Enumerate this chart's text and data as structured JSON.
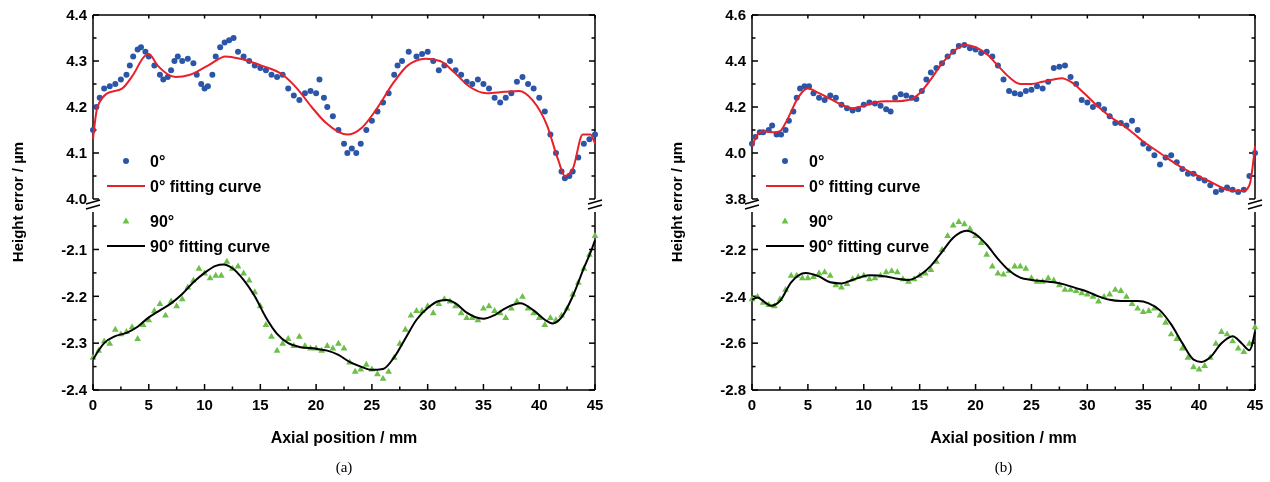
{
  "chart_data": [
    {
      "type": "scatter",
      "ylabel": "Height error / µm",
      "xlim": [
        0,
        45
      ],
      "xticks": [
        {
          "value": 0,
          "label": null
        },
        {
          "value": 5,
          "label": null
        },
        {
          "value": 10,
          "label": null
        },
        {
          "value": 15,
          "label": null
        },
        {
          "value": 20,
          "label": null
        },
        {
          "value": 25,
          "label": null
        },
        {
          "value": 30,
          "label": null
        },
        {
          "value": 35,
          "label": null
        },
        {
          "value": 40,
          "label": null
        },
        {
          "value": 45,
          "label": null
        }
      ],
      "ylim": [
        4.0,
        4.4
      ],
      "yticks": [
        {
          "value": 4.0,
          "label": "4.0"
        },
        {
          "value": 4.05,
          "label": null
        },
        4.1,
        {
          "value": 4.15,
          "label": null
        },
        4.2,
        {
          "value": 4.25,
          "label": null
        },
        4.3,
        {
          "value": 4.35,
          "label": null
        },
        4.4
      ],
      "tick_labels": "y",
      "legend": "bottom left",
      "series": [
        {
          "name": "0°",
          "type": "scatter",
          "marker": "circle",
          "color": "#2b56a8",
          "x": [
            0,
            0.3,
            0.6,
            1,
            1.5,
            2,
            2.5,
            3,
            3.3,
            3.6,
            4,
            4.3,
            4.7,
            5,
            5.5,
            6,
            6.3,
            6.7,
            7,
            7.3,
            7.6,
            8,
            8.5,
            9,
            9.3,
            9.7,
            10,
            10.3,
            10.7,
            11,
            11.4,
            11.8,
            12.2,
            12.6,
            13,
            13.5,
            14,
            14.5,
            15,
            15.5,
            16,
            16.5,
            17,
            17.5,
            18,
            18.5,
            19,
            19.5,
            20,
            20.3,
            20.7,
            21,
            21.5,
            22,
            22.5,
            22.8,
            23.2,
            23.6,
            24,
            24.5,
            25,
            25.5,
            26,
            26.5,
            27,
            27.3,
            27.7,
            28.3,
            29,
            29.5,
            30,
            30.5,
            31,
            31.5,
            32,
            32.5,
            33,
            33.5,
            34,
            34.5,
            35,
            35.5,
            36,
            36.5,
            37,
            37.5,
            38,
            38.5,
            39,
            39.5,
            40,
            40.5,
            41,
            41.5,
            42,
            42.3,
            42.7,
            43,
            43.5,
            44,
            44.5,
            45
          ],
          "values": [
            4.15,
            4.2,
            4.22,
            4.24,
            4.245,
            4.25,
            4.26,
            4.27,
            4.29,
            4.31,
            4.325,
            4.33,
            4.32,
            4.31,
            4.29,
            4.27,
            4.26,
            4.265,
            4.28,
            4.3,
            4.31,
            4.3,
            4.305,
            4.295,
            4.27,
            4.25,
            4.24,
            4.245,
            4.27,
            4.31,
            4.33,
            4.34,
            4.345,
            4.35,
            4.32,
            4.31,
            4.3,
            4.29,
            4.285,
            4.28,
            4.27,
            4.265,
            4.27,
            4.24,
            4.225,
            4.215,
            4.23,
            4.235,
            4.23,
            4.26,
            4.22,
            4.2,
            4.18,
            4.15,
            4.12,
            4.1,
            4.11,
            4.1,
            4.12,
            4.15,
            4.17,
            4.19,
            4.21,
            4.23,
            4.27,
            4.29,
            4.3,
            4.32,
            4.31,
            4.315,
            4.32,
            4.3,
            4.28,
            4.29,
            4.3,
            4.28,
            4.27,
            4.255,
            4.25,
            4.26,
            4.25,
            4.24,
            4.22,
            4.21,
            4.22,
            4.23,
            4.255,
            4.265,
            4.25,
            4.24,
            4.22,
            4.19,
            4.14,
            4.1,
            4.06,
            4.045,
            4.05,
            4.06,
            4.09,
            4.12,
            4.13,
            4.14
          ]
        },
        {
          "name": "0° fitting curve",
          "type": "line",
          "color": "#e8202a",
          "x": [
            0,
            0.4,
            1.3,
            2.6,
            3.6,
            4.6,
            5,
            5.8,
            7.4,
            8.7,
            10.3,
            11.9,
            13.2,
            15.1,
            17,
            18.3,
            19.6,
            20.9,
            22.8,
            24.1,
            25.4,
            27,
            28.2,
            29.8,
            31.1,
            32.4,
            33.7,
            35.3,
            36.9,
            38.2,
            39.4,
            40.7,
            41.7,
            42.3,
            43,
            43.9,
            44.6,
            45
          ],
          "values": [
            4.13,
            4.2,
            4.23,
            4.24,
            4.27,
            4.31,
            4.315,
            4.29,
            4.265,
            4.27,
            4.29,
            4.31,
            4.305,
            4.29,
            4.27,
            4.24,
            4.2,
            4.165,
            4.14,
            4.155,
            4.195,
            4.255,
            4.29,
            4.305,
            4.3,
            4.275,
            4.245,
            4.23,
            4.233,
            4.235,
            4.215,
            4.16,
            4.085,
            4.05,
            4.065,
            4.14,
            4.14,
            4.12
          ]
        }
      ]
    },
    {
      "type": "scatter",
      "xlabel": "Axial position / mm",
      "annotations": [
        "(a)"
      ],
      "xlim": [
        0,
        45
      ],
      "xticks": [
        0,
        {
          "value": 2.5,
          "label": null
        },
        5,
        {
          "value": 7.5,
          "label": null
        },
        10,
        {
          "value": 12.5,
          "label": null
        },
        15,
        {
          "value": 17.5,
          "label": null
        },
        20,
        {
          "value": 22.5,
          "label": null
        },
        25,
        {
          "value": 27.5,
          "label": null
        },
        30,
        {
          "value": 32.5,
          "label": null
        },
        35,
        {
          "value": 37.5,
          "label": null
        },
        40,
        {
          "value": 42.5,
          "label": null
        },
        45
      ],
      "ylim": [
        -2.4,
        -2.02
      ],
      "yticks": [
        -2.4,
        {
          "value": -2.35,
          "label": null
        },
        -2.3,
        {
          "value": -2.25,
          "label": null
        },
        -2.2,
        {
          "value": -2.15,
          "label": null
        },
        -2.1,
        {
          "value": -2.05,
          "label": null
        }
      ],
      "legend": "top left",
      "series": [
        {
          "name": "90°",
          "type": "scatter",
          "marker": "triangle",
          "color": "#6cc04a",
          "x": [
            0,
            0.5,
            1,
            1.5,
            2,
            2.5,
            3,
            3.5,
            4,
            4.5,
            5,
            5.5,
            6,
            6.5,
            7,
            7.5,
            8,
            8.5,
            9,
            9.5,
            10,
            10.5,
            11,
            11.5,
            12,
            12.5,
            13,
            13.5,
            14,
            14.5,
            15,
            15.5,
            16,
            16.5,
            17,
            17.5,
            18,
            18.5,
            19,
            19.5,
            20,
            20.5,
            21,
            21.5,
            22,
            22.5,
            23,
            23.5,
            24,
            24.5,
            25,
            25.5,
            26,
            26.5,
            27,
            27.5,
            28,
            28.5,
            29,
            29.5,
            30,
            30.5,
            31,
            31.5,
            32,
            32.5,
            33,
            33.5,
            34,
            34.5,
            35,
            35.5,
            36,
            36.5,
            37,
            37.5,
            38,
            38.5,
            39,
            39.5,
            40,
            40.5,
            41,
            41.5,
            42,
            42.5,
            43,
            43.5,
            44,
            44.5,
            45
          ],
          "values": [
            -2.33,
            -2.315,
            -2.295,
            -2.3,
            -2.27,
            -2.28,
            -2.275,
            -2.265,
            -2.29,
            -2.26,
            -2.25,
            -2.23,
            -2.215,
            -2.24,
            -2.21,
            -2.22,
            -2.205,
            -2.18,
            -2.165,
            -2.14,
            -2.15,
            -2.16,
            -2.155,
            -2.155,
            -2.125,
            -2.14,
            -2.135,
            -2.15,
            -2.165,
            -2.19,
            -2.22,
            -2.26,
            -2.285,
            -2.315,
            -2.3,
            -2.29,
            -2.305,
            -2.285,
            -2.305,
            -2.31,
            -2.31,
            -2.315,
            -2.305,
            -2.31,
            -2.3,
            -2.31,
            -2.34,
            -2.36,
            -2.355,
            -2.345,
            -2.355,
            -2.365,
            -2.375,
            -2.36,
            -2.33,
            -2.3,
            -2.27,
            -2.24,
            -2.23,
            -2.23,
            -2.22,
            -2.235,
            -2.215,
            -2.205,
            -2.21,
            -2.22,
            -2.235,
            -2.245,
            -2.245,
            -2.25,
            -2.225,
            -2.22,
            -2.23,
            -2.235,
            -2.245,
            -2.225,
            -2.21,
            -2.2,
            -2.225,
            -2.235,
            -2.245,
            -2.26,
            -2.245,
            -2.25,
            -2.24,
            -2.225,
            -2.195,
            -2.17,
            -2.14,
            -2.11,
            -2.07
          ]
        },
        {
          "name": "90° fitting curve",
          "type": "line",
          "color": "#000000",
          "x": [
            0,
            1,
            2,
            3,
            4,
            5,
            6,
            7,
            8,
            9,
            10,
            11,
            11.7,
            12.5,
            13.5,
            14.5,
            15.5,
            16.5,
            17.5,
            18.5,
            20,
            21,
            22,
            23,
            24,
            25,
            26,
            27,
            28,
            29,
            30,
            31,
            31.7,
            32.5,
            33.5,
            35,
            36,
            37,
            38.3,
            39.5,
            40.5,
            41.2,
            42,
            43,
            44,
            44.7,
            45
          ],
          "values": [
            -2.335,
            -2.3,
            -2.285,
            -2.278,
            -2.265,
            -2.245,
            -2.23,
            -2.215,
            -2.195,
            -2.17,
            -2.15,
            -2.135,
            -2.132,
            -2.14,
            -2.165,
            -2.2,
            -2.245,
            -2.28,
            -2.3,
            -2.308,
            -2.312,
            -2.316,
            -2.325,
            -2.34,
            -2.35,
            -2.357,
            -2.355,
            -2.33,
            -2.29,
            -2.25,
            -2.225,
            -2.21,
            -2.208,
            -2.215,
            -2.235,
            -2.248,
            -2.24,
            -2.225,
            -2.215,
            -2.23,
            -2.25,
            -2.258,
            -2.245,
            -2.2,
            -2.14,
            -2.1,
            -2.08
          ]
        }
      ]
    },
    {
      "type": "scatter",
      "ylabel": "Height error / µm",
      "xlim": [
        0,
        45
      ],
      "xticks": [
        {
          "value": 0,
          "label": null
        },
        {
          "value": 5,
          "label": null
        },
        {
          "value": 10,
          "label": null
        },
        {
          "value": 15,
          "label": null
        },
        {
          "value": 20,
          "label": null
        },
        {
          "value": 25,
          "label": null
        },
        {
          "value": 30,
          "label": null
        },
        {
          "value": 35,
          "label": null
        },
        {
          "value": 40,
          "label": null
        },
        {
          "value": 45,
          "label": null
        }
      ],
      "ylim": [
        3.8,
        4.6
      ],
      "yticks": [
        3.8,
        {
          "value": 3.9,
          "label": null
        },
        {
          "value": 4.0,
          "label": "4.0"
        },
        {
          "value": 4.1,
          "label": null
        },
        4.2,
        {
          "value": 4.3,
          "label": null
        },
        4.4,
        {
          "value": 4.5,
          "label": null
        },
        4.6
      ],
      "tick_labels": "y",
      "legend": "bottom left",
      "series": [
        {
          "name": "0°",
          "type": "scatter",
          "marker": "circle",
          "color": "#2b56a8",
          "x": [
            0,
            0.3,
            0.7,
            1,
            1.5,
            1.8,
            2.2,
            2.6,
            3,
            3.3,
            3.7,
            4,
            4.3,
            4.7,
            5.1,
            5.5,
            6,
            6.5,
            7,
            7.5,
            8,
            8.5,
            9,
            9.5,
            10,
            10.5,
            11,
            11.5,
            12,
            12.4,
            12.8,
            13.3,
            13.8,
            14.3,
            14.7,
            15.2,
            15.6,
            16,
            16.5,
            17,
            17.5,
            18,
            18.5,
            19,
            19.5,
            20,
            20.5,
            21,
            21.5,
            22,
            22.5,
            23,
            23.5,
            24,
            24.5,
            25,
            25.5,
            26,
            26.5,
            27,
            27.5,
            28,
            28.5,
            29,
            29.5,
            30,
            30.5,
            31,
            31.5,
            32,
            32.5,
            33,
            33.5,
            34,
            34.5,
            35,
            35.5,
            36,
            36.5,
            37,
            37.5,
            38,
            38.5,
            39,
            39.5,
            40,
            40.5,
            41,
            41.5,
            42,
            42.5,
            43,
            43.5,
            44,
            44.5,
            45
          ],
          "values": [
            4.04,
            4.07,
            4.09,
            4.09,
            4.1,
            4.12,
            4.08,
            4.08,
            4.1,
            4.14,
            4.18,
            4.24,
            4.28,
            4.29,
            4.29,
            4.26,
            4.24,
            4.23,
            4.25,
            4.24,
            4.21,
            4.195,
            4.185,
            4.19,
            4.21,
            4.22,
            4.215,
            4.205,
            4.19,
            4.18,
            4.24,
            4.255,
            4.25,
            4.24,
            4.235,
            4.27,
            4.32,
            4.35,
            4.37,
            4.39,
            4.42,
            4.44,
            4.465,
            4.47,
            4.455,
            4.45,
            4.435,
            4.44,
            4.42,
            4.38,
            4.32,
            4.27,
            4.26,
            4.255,
            4.27,
            4.275,
            4.29,
            4.28,
            4.31,
            4.37,
            4.375,
            4.38,
            4.33,
            4.3,
            4.23,
            4.22,
            4.2,
            4.21,
            4.19,
            4.16,
            4.13,
            4.13,
            4.12,
            4.14,
            4.1,
            4.04,
            4.02,
            3.99,
            3.95,
            3.98,
            3.99,
            3.96,
            3.93,
            3.91,
            3.91,
            3.89,
            3.88,
            3.86,
            3.83,
            3.84,
            3.85,
            3.84,
            3.83,
            3.84,
            3.9,
            4.0
          ]
        },
        {
          "name": "0° fitting curve",
          "type": "line",
          "color": "#e8202a",
          "x": [
            0,
            0.5,
            1,
            2,
            2.5,
            3,
            3.5,
            4,
            4.5,
            5,
            6,
            7,
            8,
            9,
            10,
            11,
            12,
            13,
            14,
            15,
            16,
            17,
            18,
            19,
            20,
            21,
            22,
            23,
            24,
            25,
            26,
            27,
            27.7,
            28.5,
            29.5,
            31,
            32,
            33.5,
            35,
            36.5,
            38,
            39.5,
            41,
            42,
            43,
            44,
            44.5,
            45
          ],
          "values": [
            4.03,
            4.08,
            4.095,
            4.09,
            4.095,
            4.13,
            4.18,
            4.23,
            4.265,
            4.28,
            4.26,
            4.235,
            4.21,
            4.195,
            4.205,
            4.22,
            4.225,
            4.225,
            4.23,
            4.26,
            4.32,
            4.39,
            4.44,
            4.47,
            4.46,
            4.43,
            4.38,
            4.33,
            4.3,
            4.3,
            4.31,
            4.32,
            4.325,
            4.31,
            4.27,
            4.2,
            4.16,
            4.11,
            4.05,
            4.0,
            3.95,
            3.91,
            3.875,
            3.85,
            3.835,
            3.835,
            3.86,
            4.03
          ]
        }
      ]
    },
    {
      "type": "scatter",
      "xlabel": "Axial position / mm",
      "annotations": [
        "(b)"
      ],
      "xlim": [
        0,
        45
      ],
      "xticks": [
        0,
        {
          "value": 2.5,
          "label": null
        },
        5,
        {
          "value": 7.5,
          "label": null
        },
        10,
        {
          "value": 12.5,
          "label": null
        },
        15,
        {
          "value": 17.5,
          "label": null
        },
        20,
        {
          "value": 22.5,
          "label": null
        },
        25,
        {
          "value": 27.5,
          "label": null
        },
        30,
        {
          "value": 32.5,
          "label": null
        },
        35,
        {
          "value": 37.5,
          "label": null
        },
        40,
        {
          "value": 42.5,
          "label": null
        },
        45
      ],
      "ylim": [
        -2.8,
        -2.04
      ],
      "yticks": [
        -2.8,
        {
          "value": -2.7,
          "label": null
        },
        -2.6,
        {
          "value": -2.5,
          "label": null
        },
        -2.4,
        {
          "value": -2.3,
          "label": null
        },
        -2.2,
        {
          "value": -2.1,
          "label": null
        }
      ],
      "legend": "top left",
      "series": [
        {
          "name": "90°",
          "type": "scatter",
          "marker": "triangle",
          "color": "#6cc04a",
          "x": [
            0,
            0.5,
            1,
            1.5,
            2,
            2.5,
            3,
            3.5,
            4,
            4.5,
            5,
            5.5,
            6,
            6.5,
            7,
            7.5,
            8,
            8.5,
            9,
            9.5,
            10,
            10.5,
            11,
            11.5,
            12,
            12.5,
            13,
            13.5,
            14,
            14.5,
            15,
            15.5,
            16,
            16.5,
            17,
            17.5,
            18,
            18.5,
            19,
            19.5,
            20,
            20.5,
            21,
            21.5,
            22,
            22.5,
            23,
            23.5,
            24,
            24.5,
            25,
            25.5,
            26,
            26.5,
            27,
            27.5,
            28,
            28.5,
            29,
            29.5,
            30,
            30.5,
            31,
            31.5,
            32,
            32.5,
            33,
            33.5,
            34,
            34.5,
            35,
            35.5,
            36,
            36.5,
            37,
            37.5,
            38,
            38.5,
            39,
            39.5,
            40,
            40.5,
            41,
            41.5,
            42,
            42.5,
            43,
            43.5,
            44,
            44.5,
            45
          ],
          "values": [
            -2.41,
            -2.4,
            -2.425,
            -2.435,
            -2.44,
            -2.41,
            -2.37,
            -2.31,
            -2.31,
            -2.32,
            -2.32,
            -2.315,
            -2.3,
            -2.295,
            -2.31,
            -2.35,
            -2.36,
            -2.345,
            -2.325,
            -2.315,
            -2.31,
            -2.325,
            -2.32,
            -2.31,
            -2.295,
            -2.29,
            -2.295,
            -2.325,
            -2.335,
            -2.325,
            -2.31,
            -2.3,
            -2.285,
            -2.25,
            -2.2,
            -2.14,
            -2.095,
            -2.08,
            -2.09,
            -2.11,
            -2.14,
            -2.17,
            -2.22,
            -2.27,
            -2.3,
            -2.305,
            -2.29,
            -2.27,
            -2.27,
            -2.28,
            -2.32,
            -2.335,
            -2.335,
            -2.32,
            -2.33,
            -2.35,
            -2.37,
            -2.37,
            -2.375,
            -2.385,
            -2.39,
            -2.4,
            -2.42,
            -2.4,
            -2.39,
            -2.37,
            -2.375,
            -2.4,
            -2.43,
            -2.45,
            -2.465,
            -2.46,
            -2.45,
            -2.48,
            -2.51,
            -2.56,
            -2.58,
            -2.62,
            -2.66,
            -2.7,
            -2.71,
            -2.695,
            -2.66,
            -2.6,
            -2.55,
            -2.56,
            -2.59,
            -2.62,
            -2.635,
            -2.6,
            -2.53
          ]
        },
        {
          "name": "90° fitting curve",
          "type": "line",
          "color": "#000000",
          "x": [
            0,
            0.5,
            1,
            1.7,
            2.5,
            3.5,
            4.8,
            6,
            7,
            8,
            9,
            10.5,
            12,
            13,
            14,
            15,
            16,
            17,
            18,
            19.2,
            20,
            21,
            22,
            23,
            24,
            25,
            26,
            27,
            28,
            29,
            30,
            31,
            32,
            33,
            34.5,
            35.5,
            36.5,
            37.5,
            38.5,
            39.5,
            40.2,
            41,
            42,
            43,
            43.8,
            44.5,
            45
          ],
          "values": [
            -2.415,
            -2.405,
            -2.42,
            -2.44,
            -2.42,
            -2.34,
            -2.3,
            -2.315,
            -2.34,
            -2.345,
            -2.33,
            -2.31,
            -2.315,
            -2.325,
            -2.33,
            -2.31,
            -2.27,
            -2.21,
            -2.15,
            -2.12,
            -2.135,
            -2.18,
            -2.24,
            -2.29,
            -2.32,
            -2.33,
            -2.335,
            -2.34,
            -2.35,
            -2.365,
            -2.38,
            -2.4,
            -2.415,
            -2.42,
            -2.42,
            -2.43,
            -2.46,
            -2.52,
            -2.6,
            -2.67,
            -2.68,
            -2.66,
            -2.6,
            -2.57,
            -2.6,
            -2.63,
            -2.55
          ]
        }
      ]
    }
  ]
}
